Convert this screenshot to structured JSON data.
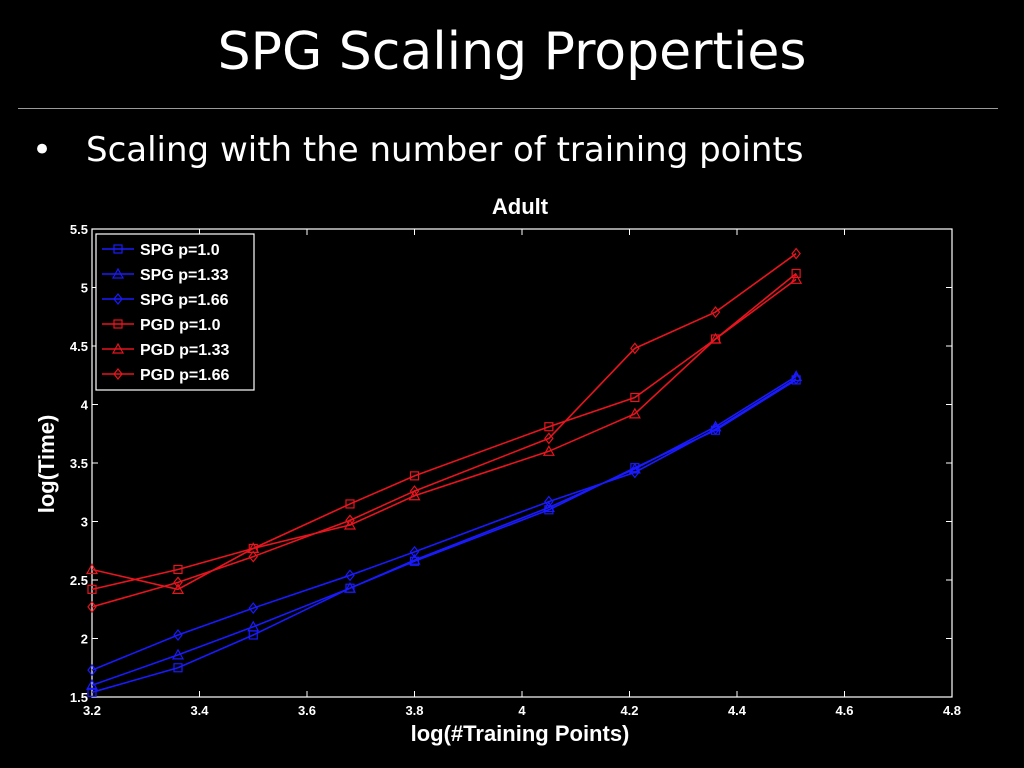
{
  "slide": {
    "title": "SPG Scaling Properties",
    "bullet": "•",
    "bullet_text": "Scaling with the number of training points"
  },
  "colors": {
    "blue": "#1a1aff",
    "red": "#e8141e",
    "axes": "#ffffff",
    "background": "#000000"
  },
  "chart_data": {
    "type": "line",
    "title": "Adult",
    "xlabel": "log(#Training Points)",
    "ylabel": "log(Time)",
    "xlim": [
      3.2,
      4.8
    ],
    "ylim": [
      1.5,
      5.5
    ],
    "xticks": [
      3.2,
      3.4,
      3.6,
      3.8,
      4.0,
      4.2,
      4.4,
      4.6,
      4.8
    ],
    "xtick_labels": [
      "3.2",
      "3.4",
      "3.6",
      "3.8",
      "4",
      "4.2",
      "4.4",
      "4.6",
      "4.8"
    ],
    "yticks": [
      1.5,
      2.0,
      2.5,
      3.0,
      3.5,
      4.0,
      4.5,
      5.0,
      5.5
    ],
    "ytick_labels": [
      "1.5",
      "2",
      "2.5",
      "3",
      "3.5",
      "4",
      "4.5",
      "5",
      "5.5"
    ],
    "grid": false,
    "legend_position": "top-left",
    "x": [
      3.2,
      3.36,
      3.5,
      3.68,
      3.8,
      4.05,
      4.21,
      4.36,
      4.51
    ],
    "series": [
      {
        "name": "SPG p=1.0",
        "color": "#1a1aff",
        "marker": "square",
        "values": [
          1.54,
          1.75,
          2.03,
          2.43,
          2.66,
          3.1,
          3.46,
          3.78,
          4.21
        ]
      },
      {
        "name": "SPG p=1.33",
        "color": "#1a1aff",
        "marker": "triangle",
        "values": [
          1.6,
          1.86,
          2.1,
          2.43,
          2.67,
          3.12,
          3.45,
          3.81,
          4.24
        ]
      },
      {
        "name": "SPG p=1.66",
        "color": "#1a1aff",
        "marker": "diamond",
        "values": [
          1.73,
          2.03,
          2.26,
          2.54,
          2.74,
          3.17,
          3.42,
          3.79,
          4.22
        ]
      },
      {
        "name": "PGD p=1.0",
        "color": "#e8141e",
        "marker": "square",
        "values": [
          2.42,
          2.59,
          2.77,
          3.15,
          3.39,
          3.81,
          4.06,
          4.56,
          5.12
        ]
      },
      {
        "name": "PGD p=1.33",
        "color": "#e8141e",
        "marker": "triangle",
        "values": [
          2.59,
          2.42,
          2.77,
          2.97,
          3.22,
          3.6,
          3.92,
          4.56,
          5.07
        ]
      },
      {
        "name": "PGD p=1.66",
        "color": "#e8141e",
        "marker": "diamond",
        "values": [
          2.27,
          2.48,
          2.7,
          3.01,
          3.26,
          3.71,
          4.48,
          4.79,
          5.29
        ]
      }
    ]
  }
}
